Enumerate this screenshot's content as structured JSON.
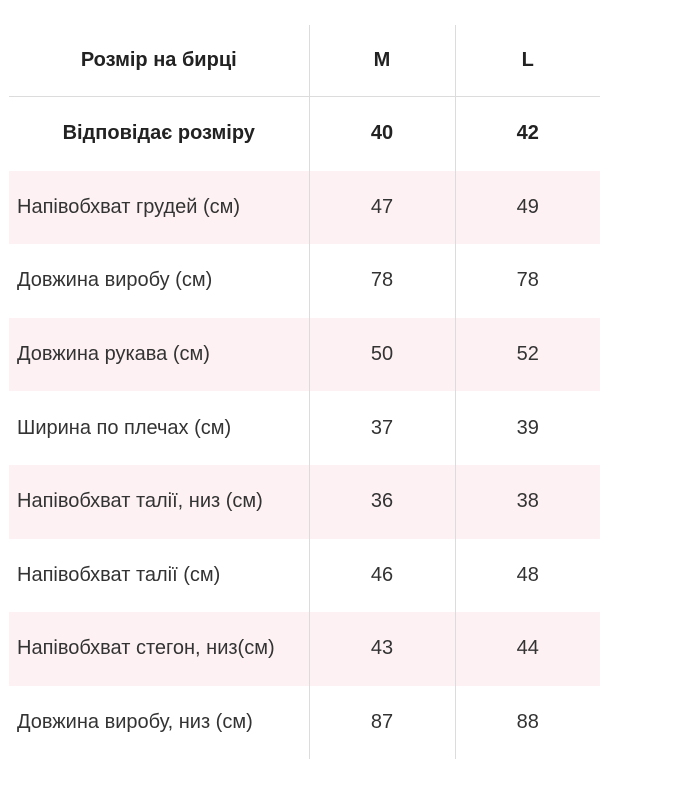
{
  "table": {
    "header": {
      "label": "Розмір на бирці",
      "col_m": "M",
      "col_l": "L"
    },
    "rows": [
      {
        "label": "Відповідає розміру",
        "m": "40",
        "l": "42",
        "bold": true
      },
      {
        "label": "Напівобхват грудей (см)",
        "m": "47",
        "l": "49"
      },
      {
        "label": "Довжина виробу (см)",
        "m": "78",
        "l": "78"
      },
      {
        "label": "Довжина рукава (см)",
        "m": "50",
        "l": "52"
      },
      {
        "label": "Ширина по плечах (см)",
        "m": "37",
        "l": "39"
      },
      {
        "label": "Напівобхват талії, низ (см)",
        "m": "36",
        "l": "38"
      },
      {
        "label": "Напівобхват талії (см)",
        "m": "46",
        "l": "48"
      },
      {
        "label": "Напівобхват стегон, низ(см)",
        "m": "43",
        "l": "44"
      },
      {
        "label": "Довжина виробу, низ (см)",
        "m": "87",
        "l": "88"
      }
    ],
    "colors": {
      "stripe": "#fdf1f3",
      "divider": "#dcdcdc",
      "text": "#333333"
    }
  }
}
